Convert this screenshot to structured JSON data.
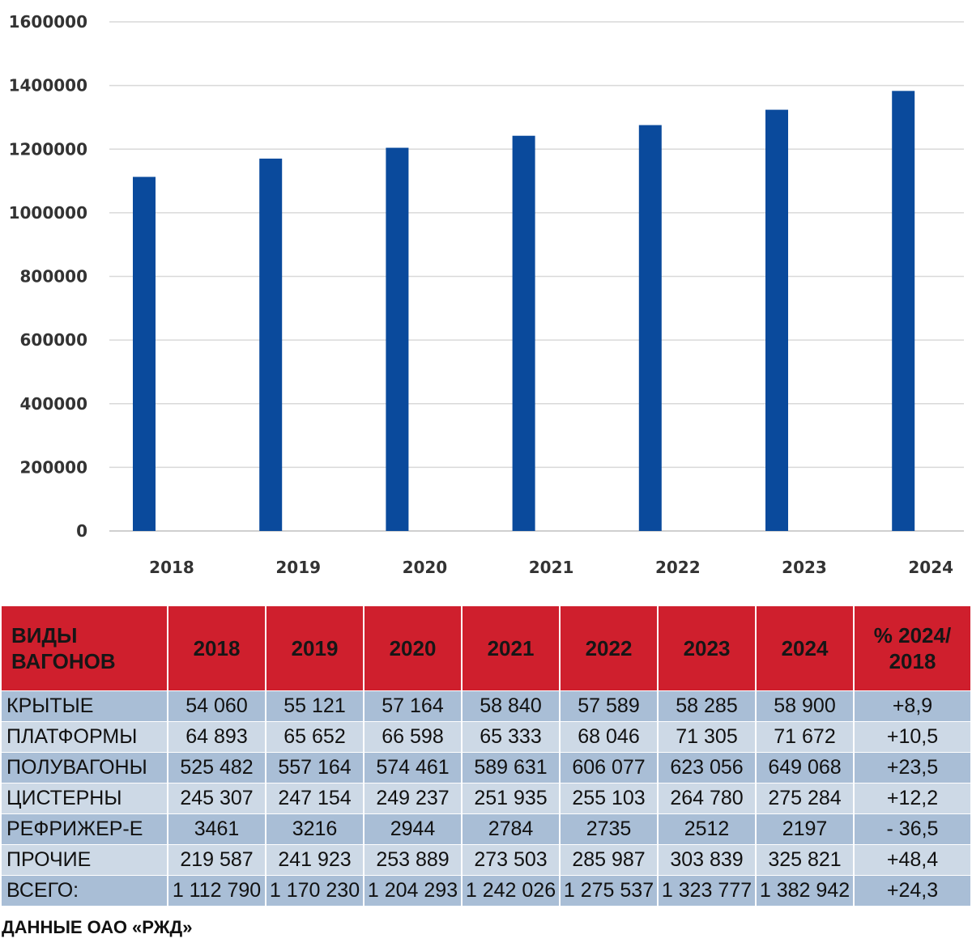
{
  "chart_data": {
    "type": "bar",
    "categories": [
      "2018",
      "2019",
      "2020",
      "2021",
      "2022",
      "2023",
      "2024"
    ],
    "values": [
      1112790,
      1170230,
      1204293,
      1242026,
      1275537,
      1323777,
      1382942
    ],
    "ylim": [
      0,
      1600000
    ],
    "yticks": [
      "0",
      "200000",
      "400000",
      "600000",
      "800000",
      "1000000",
      "1200000",
      "1400000",
      "1600000"
    ],
    "grid": true,
    "bar_color": "#0a4a9c"
  },
  "table": {
    "headers": [
      "ВИДЫ ВАГОНОВ",
      "2018",
      "2019",
      "2020",
      "2021",
      "2022",
      "2023",
      "2024",
      "% 2024/ 2018"
    ],
    "rows": [
      [
        "КРЫТЫЕ",
        "54 060",
        "55 121",
        "57 164",
        "58 840",
        "57 589",
        "58 285",
        "58 900",
        "+8,9"
      ],
      [
        "ПЛАТФОРМЫ",
        "64 893",
        "65 652",
        "66 598",
        "65 333",
        "68 046",
        "71 305",
        "71 672",
        "+10,5"
      ],
      [
        "ПОЛУВАГОНЫ",
        "525 482",
        "557 164",
        "574 461",
        "589 631",
        "606 077",
        "623 056",
        "649 068",
        "+23,5"
      ],
      [
        "ЦИСТЕРНЫ",
        "245 307",
        "247 154",
        "249 237",
        "251 935",
        "255 103",
        "264 780",
        "275 284",
        "+12,2"
      ],
      [
        "РЕФРИЖЕР-Е",
        "3461",
        "3216",
        "2944",
        "2784",
        "2735",
        "2512",
        "2197",
        "- 36,5"
      ],
      [
        "ПРОЧИЕ",
        "219 587",
        "241 923",
        "253 889",
        "273 503",
        "285 987",
        "303 839",
        "325 821",
        "+48,4"
      ],
      [
        "ВСЕГО:",
        "1 112 790",
        "1 170 230",
        "1 204 293",
        "1 242 026",
        "1 275 537",
        "1 323 777",
        "1 382 942",
        "+24,3"
      ]
    ],
    "header_color": "#cf1f2d",
    "row_colors": [
      "#a9bed6",
      "#cdd9e6"
    ]
  },
  "source": "ДАННЫЕ ОАО «РЖД»"
}
